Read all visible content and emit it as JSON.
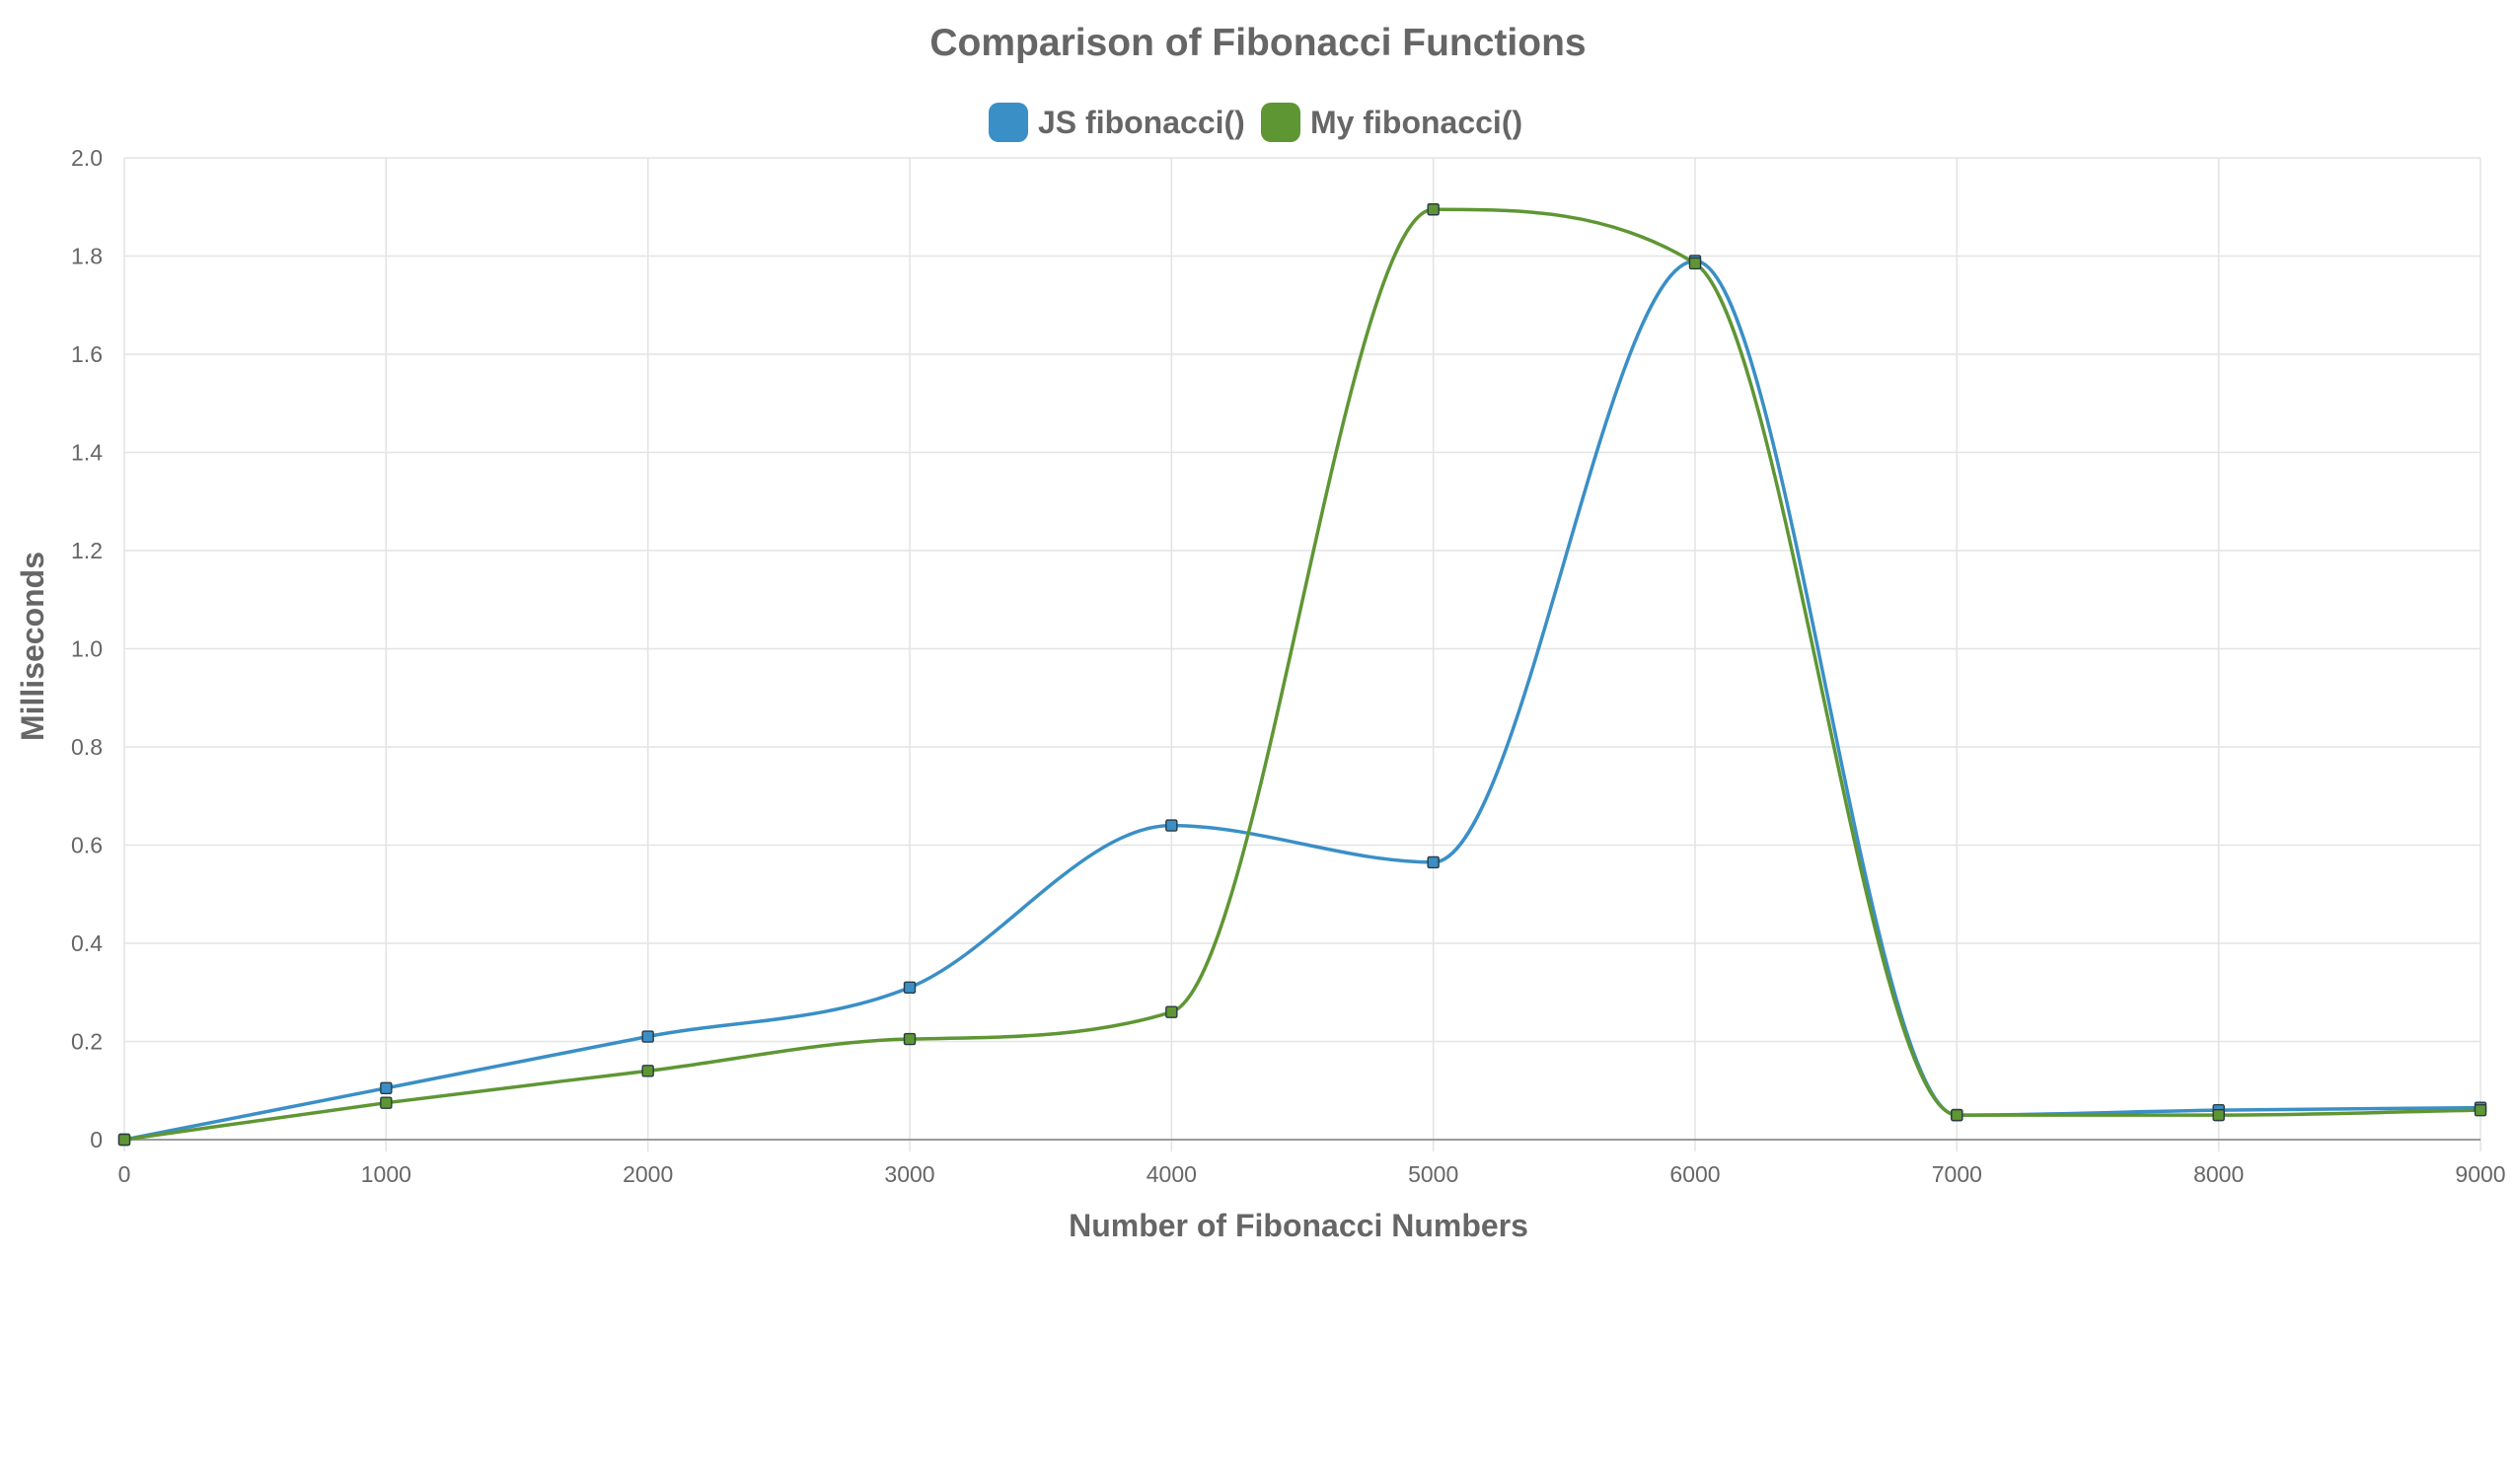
{
  "chart_data": {
    "type": "line",
    "title": "Comparison of Fibonacci Functions",
    "xlabel": "Number of Fibonacci Numbers",
    "ylabel": "Milliseconds",
    "x": [
      0,
      1000,
      2000,
      3000,
      4000,
      5000,
      6000,
      7000,
      8000,
      9000
    ],
    "x_ticks": [
      "0",
      "1000",
      "2000",
      "3000",
      "4000",
      "5000",
      "6000",
      "7000",
      "8000",
      "9000"
    ],
    "y_ticks": [
      "0",
      "0.2",
      "0.4",
      "0.6",
      "0.8",
      "1.0",
      "1.2",
      "1.4",
      "1.6",
      "1.8",
      "2.0"
    ],
    "xlim": [
      0,
      9000
    ],
    "ylim": [
      0,
      2.0
    ],
    "grid": true,
    "legend_position": "top-center",
    "series": [
      {
        "name": "JS fibonacci()",
        "color": "#3a8fc6",
        "values": [
          0,
          0.105,
          0.21,
          0.31,
          0.64,
          0.565,
          1.79,
          0.05,
          0.06,
          0.065
        ]
      },
      {
        "name": "My fibonacci()",
        "color": "#5f9634",
        "values": [
          0,
          0.075,
          0.14,
          0.205,
          0.26,
          1.895,
          1.785,
          0.05,
          0.05,
          0.06
        ]
      }
    ]
  }
}
